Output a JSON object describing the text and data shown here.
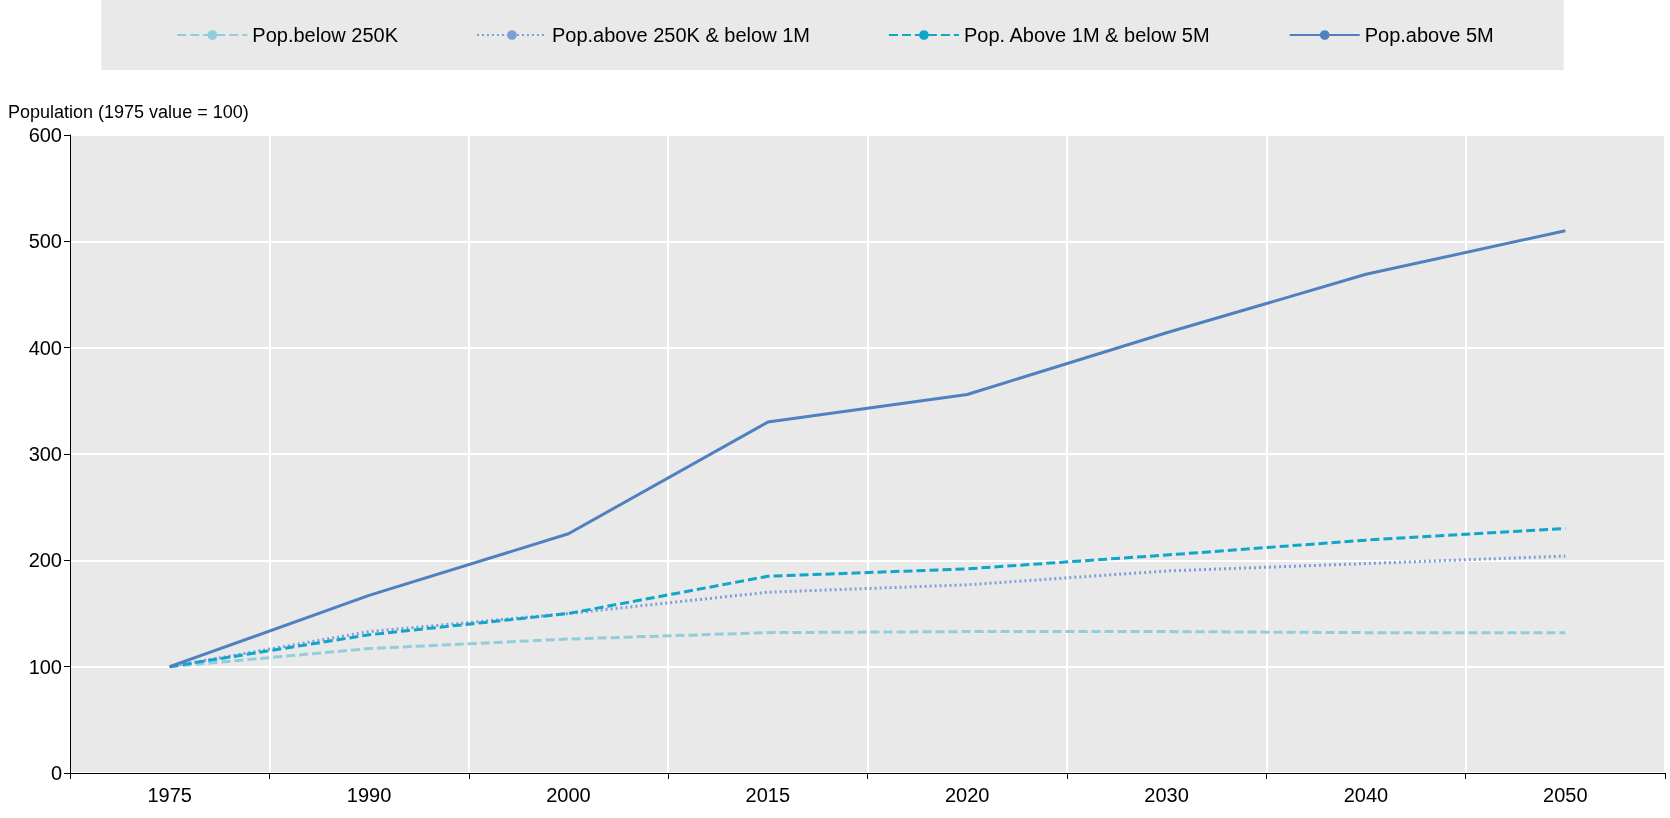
{
  "chart_data": {
    "type": "line",
    "ylabel": "Population (1975 value = 100)",
    "categories": [
      "1975",
      "1990",
      "2000",
      "2015",
      "2020",
      "2030",
      "2040",
      "2050"
    ],
    "series": [
      {
        "name": "Pop.below 250K",
        "color": "#92cddc",
        "line_style": "dashed",
        "values": [
          100,
          117,
          126,
          132,
          133,
          133,
          132,
          132
        ]
      },
      {
        "name": "Pop.above 250K & below 1M",
        "color": "#7c9fdc",
        "line_style": "dotted",
        "values": [
          100,
          133,
          150,
          170,
          177,
          190,
          197,
          204
        ]
      },
      {
        "name": "Pop. Above 1M & below 5M",
        "color": "#10a5c9",
        "line_style": "dashed",
        "values": [
          100,
          130,
          150,
          185,
          192,
          205,
          219,
          230
        ]
      },
      {
        "name": "Pop.above 5M",
        "color": "#4f80bf",
        "line_style": "solid",
        "values": [
          100,
          167,
          225,
          330,
          356,
          414,
          469,
          510
        ]
      }
    ],
    "ylim": [
      0,
      600
    ],
    "yticks": [
      0,
      100,
      200,
      300,
      400,
      500,
      600
    ],
    "grid": true,
    "legend": "top",
    "marker": "none"
  }
}
